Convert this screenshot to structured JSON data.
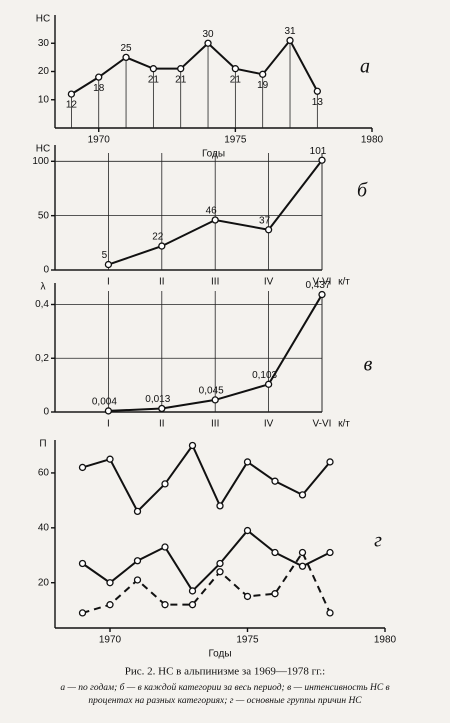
{
  "chart_data": [
    {
      "type": "line",
      "panel_label": "а",
      "y_label": "НС",
      "x_label": "Годы",
      "x": [
        1969,
        1970,
        1971,
        1972,
        1973,
        1974,
        1975,
        1976,
        1977,
        1978
      ],
      "values": [
        12,
        18,
        25,
        21,
        21,
        30,
        21,
        19,
        31,
        13
      ],
      "color": "#111",
      "xlim": [
        1968.4,
        1980
      ],
      "xticks": [
        1970,
        1975,
        1980
      ],
      "ylim": [
        0,
        40
      ],
      "yticks": [
        10,
        20,
        30
      ],
      "drop_lines": true,
      "grid": false
    },
    {
      "type": "line",
      "panel_label": "б",
      "y_label": "НС",
      "x_label": "к/т",
      "categories": [
        "I",
        "II",
        "III",
        "IV",
        "V-VI"
      ],
      "values": [
        5,
        22,
        46,
        37,
        101
      ],
      "color": "#111",
      "ylim": [
        0,
        115
      ],
      "yticks": [
        0,
        50,
        100
      ],
      "grid": true
    },
    {
      "type": "line",
      "panel_label": "в",
      "y_label": "λ",
      "x_label": "к/т",
      "categories": [
        "I",
        "II",
        "III",
        "IV",
        "V-VI"
      ],
      "values": [
        0.004,
        0.013,
        0.045,
        0.103,
        0.437
      ],
      "value_labels": [
        "0,004",
        "0,013",
        "0,045",
        "0,103",
        "0,437"
      ],
      "color": "#111",
      "ylim": [
        0,
        0.48
      ],
      "yticks": [
        0,
        {
          "value": 0.2,
          "label": "0,2"
        },
        {
          "value": 0.4,
          "label": "0,4"
        }
      ],
      "grid": true
    },
    {
      "type": "line",
      "panel_label": "г",
      "y_label": "П",
      "x_label": "Годы",
      "x": [
        1969,
        1970,
        1971,
        1972,
        1973,
        1974,
        1975,
        1976,
        1977,
        1978
      ],
      "series": [
        {
          "color": "#111",
          "values": [
            62,
            65,
            46,
            56,
            70,
            48,
            64,
            57,
            52,
            64
          ]
        },
        {
          "color": "#111",
          "values": [
            27,
            20,
            28,
            33,
            17,
            27,
            39,
            31,
            26,
            31
          ]
        },
        {
          "color": "#111",
          "dashed": true,
          "values": [
            9,
            12,
            21,
            12,
            12,
            24,
            15,
            16,
            31,
            9
          ]
        }
      ],
      "xlim": [
        1968,
        1980
      ],
      "xticks": [
        1970,
        1975,
        1980
      ],
      "ylim": [
        3.5,
        72
      ],
      "yticks": [
        20,
        40,
        60
      ],
      "grid": false
    }
  ],
  "caption": {
    "title": "Рис. 2. НС в альпинизме за 1969—1978 гг.:",
    "lines": [
      "а — по годам; б — в каждой категории за весь период; в — интенсивность НС в",
      "процентах на разных категориях; г — основные группы причин НС"
    ]
  }
}
